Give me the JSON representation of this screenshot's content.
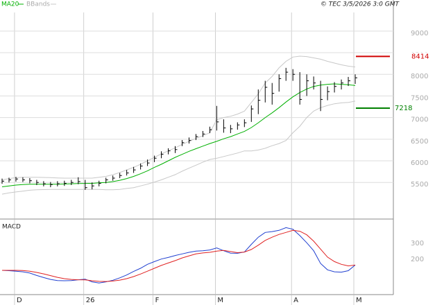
{
  "chart_data": [
    {
      "type": "ohlc",
      "source": "© TEC 3/5/2026 3:0 GMT",
      "ylim": [
        4670,
        9430
      ],
      "yticks": [
        5500,
        6000,
        6500,
        7000,
        7500,
        8000,
        8500,
        9000
      ],
      "grid": true,
      "color": "#000000",
      "high": [
        5590,
        5610,
        5630,
        5620,
        5600,
        5560,
        5530,
        5510,
        5530,
        5540,
        5560,
        5620,
        5560,
        5500,
        5540,
        5610,
        5660,
        5720,
        5790,
        5860,
        5940,
        6030,
        6120,
        6220,
        6290,
        6340,
        6480,
        6540,
        6620,
        6690,
        6790,
        7270,
        6960,
        6830,
        6890,
        6960,
        7280,
        7650,
        7850,
        7800,
        8000,
        8150,
        8120,
        8050,
        8000,
        7950,
        7850,
        7720,
        7820,
        7880,
        7940,
        8000
      ],
      "low": [
        5470,
        5500,
        5520,
        5510,
        5480,
        5440,
        5410,
        5390,
        5410,
        5420,
        5440,
        5460,
        5330,
        5340,
        5410,
        5480,
        5540,
        5600,
        5660,
        5720,
        5800,
        5880,
        5970,
        6060,
        6150,
        6180,
        6340,
        6400,
        6480,
        6550,
        6640,
        6700,
        6650,
        6640,
        6720,
        6780,
        6900,
        7080,
        7350,
        7300,
        7600,
        7850,
        7850,
        7300,
        7500,
        7650,
        7150,
        7400,
        7580,
        7650,
        7730,
        7780
      ],
      "close": [
        5530,
        5560,
        5580,
        5560,
        5540,
        5500,
        5470,
        5450,
        5470,
        5480,
        5500,
        5520,
        5380,
        5420,
        5480,
        5560,
        5600,
        5660,
        5720,
        5790,
        5880,
        5950,
        6060,
        6150,
        6230,
        6260,
        6420,
        6470,
        6560,
        6620,
        6720,
        6900,
        6760,
        6740,
        6830,
        6880,
        7200,
        7400,
        7700,
        7560,
        7900,
        8050,
        8000,
        7420,
        7850,
        7800,
        7420,
        7600,
        7720,
        7800,
        7850,
        7920
      ],
      "ma": {
        "name": "MA20",
        "color": "#00b000",
        "values": [
          5400,
          5420,
          5440,
          5450,
          5460,
          5460,
          5460,
          5460,
          5460,
          5465,
          5470,
          5475,
          5478,
          5480,
          5490,
          5500,
          5520,
          5550,
          5590,
          5640,
          5700,
          5770,
          5850,
          5920,
          6000,
          6080,
          6150,
          6220,
          6280,
          6340,
          6400,
          6450,
          6510,
          6560,
          6620,
          6680,
          6770,
          6880,
          7000,
          7110,
          7230,
          7360,
          7480,
          7580,
          7660,
          7720,
          7750,
          7770,
          7780,
          7770,
          7760,
          7740
        ]
      },
      "bands": {
        "name": "BBands",
        "color": "#c8c8c8",
        "upper": [
          5560,
          5590,
          5610,
          5620,
          5620,
          5620,
          5615,
          5610,
          5605,
          5600,
          5600,
          5600,
          5600,
          5600,
          5620,
          5640,
          5680,
          5730,
          5790,
          5850,
          5920,
          6000,
          6080,
          6160,
          6230,
          6300,
          6380,
          6450,
          6520,
          6580,
          6650,
          6950,
          7000,
          7030,
          7080,
          7150,
          7350,
          7550,
          7800,
          7950,
          8150,
          8300,
          8400,
          8420,
          8410,
          8380,
          8350,
          8300,
          8260,
          8220,
          8190,
          8170
        ],
        "lower": [
          5230,
          5260,
          5280,
          5300,
          5320,
          5330,
          5335,
          5340,
          5340,
          5340,
          5340,
          5340,
          5340,
          5340,
          5340,
          5330,
          5330,
          5340,
          5360,
          5380,
          5420,
          5460,
          5510,
          5560,
          5620,
          5680,
          5760,
          5830,
          5900,
          5970,
          6030,
          6060,
          6100,
          6140,
          6180,
          6230,
          6230,
          6250,
          6290,
          6350,
          6400,
          6470,
          6650,
          6800,
          7000,
          7150,
          7230,
          7280,
          7320,
          7340,
          7350,
          7380
        ]
      },
      "levels": [
        {
          "value": 8414,
          "color": "#d00000"
        },
        {
          "value": 7218,
          "color": "#008000"
        }
      ]
    },
    {
      "type": "macd",
      "title": "MACD",
      "ylim": [
        -35,
        430
      ],
      "yticks": [
        200,
        300
      ],
      "categories": [
        null,
        null,
        "D",
        null,
        null,
        null,
        null,
        null,
        null,
        null,
        null,
        null,
        "26",
        null,
        null,
        null,
        null,
        null,
        null,
        null,
        null,
        null,
        "F",
        null,
        null,
        null,
        null,
        null,
        null,
        null,
        null,
        "M",
        null,
        null,
        null,
        null,
        null,
        null,
        null,
        null,
        null,
        null,
        "A",
        null,
        null,
        null,
        null,
        null,
        null,
        null,
        null,
        "M"
      ],
      "series": [
        {
          "color": "#1f3fd0",
          "values": [
            117,
            115,
            112,
            108,
            100,
            85,
            72,
            60,
            53,
            52,
            53,
            58,
            62,
            45,
            38,
            45,
            55,
            70,
            88,
            110,
            130,
            155,
            172,
            188,
            198,
            210,
            220,
            230,
            238,
            240,
            245,
            258,
            240,
            225,
            224,
            232,
            280,
            325,
            355,
            360,
            368,
            385,
            375,
            335,
            290,
            240,
            160,
            120,
            108,
            106,
            115,
            150
          ]
        },
        {
          "color": "#e02020",
          "values": [
            117,
            117,
            117,
            116,
            112,
            104,
            95,
            84,
            73,
            65,
            60,
            58,
            57,
            52,
            48,
            47,
            50,
            56,
            65,
            78,
            94,
            112,
            130,
            148,
            163,
            178,
            195,
            208,
            220,
            226,
            230,
            238,
            242,
            235,
            228,
            232,
            248,
            275,
            305,
            325,
            342,
            355,
            368,
            362,
            340,
            300,
            250,
            200,
            172,
            155,
            145,
            150
          ]
        }
      ]
    }
  ]
}
